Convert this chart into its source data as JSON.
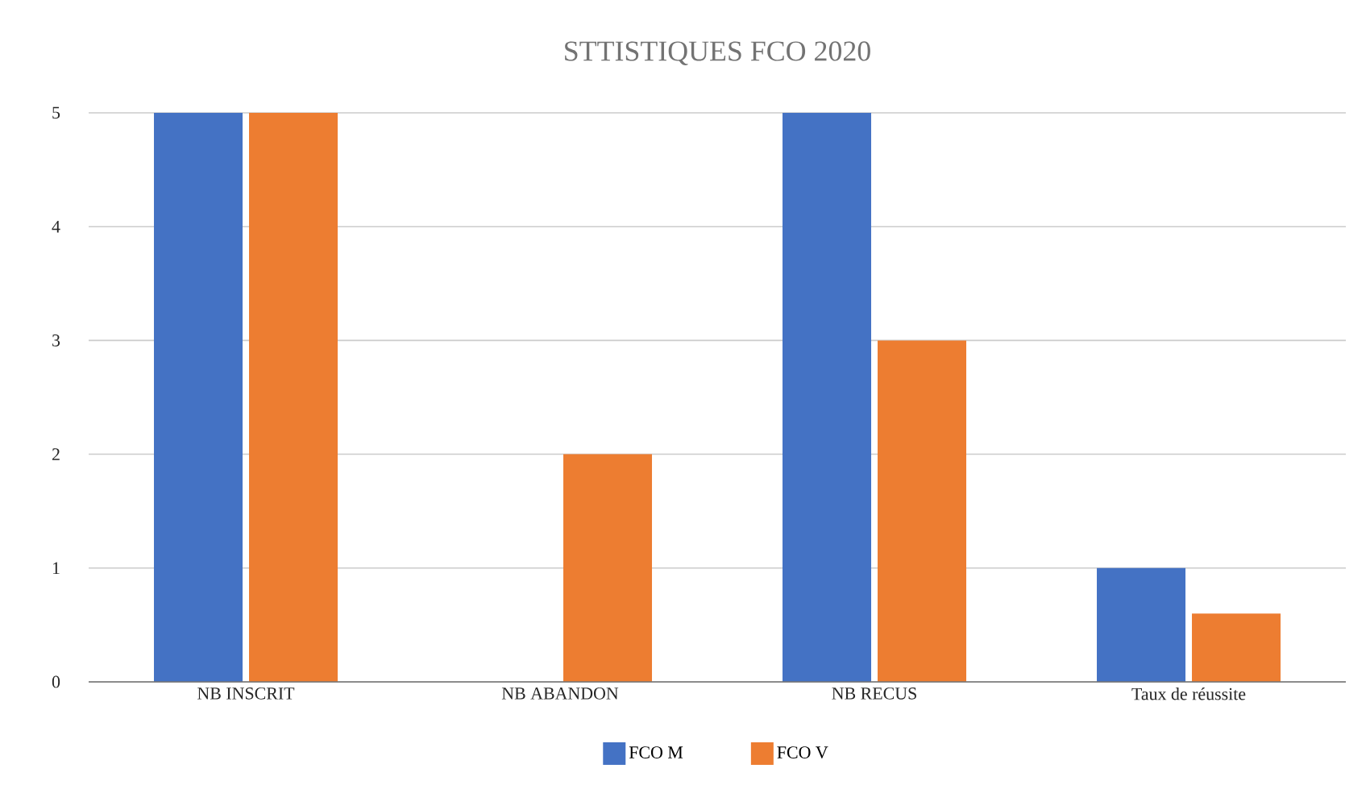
{
  "chart_data": {
    "type": "bar",
    "title": "STTISTIQUES FCO 2020",
    "categories": [
      "NB INSCRIT",
      "NB ABANDON",
      "NB RECUS",
      "Taux de réussite"
    ],
    "series": [
      {
        "name": "FCO M",
        "color": "#4472c4",
        "values": [
          5,
          0,
          5,
          1
        ]
      },
      {
        "name": "FCO V",
        "color": "#ed7d31",
        "values": [
          5,
          2,
          3,
          0.6
        ]
      }
    ],
    "ylim": [
      0,
      5
    ],
    "yticks": [
      0,
      1,
      2,
      3,
      4,
      5
    ],
    "grid": "y",
    "legend": "bottom"
  }
}
